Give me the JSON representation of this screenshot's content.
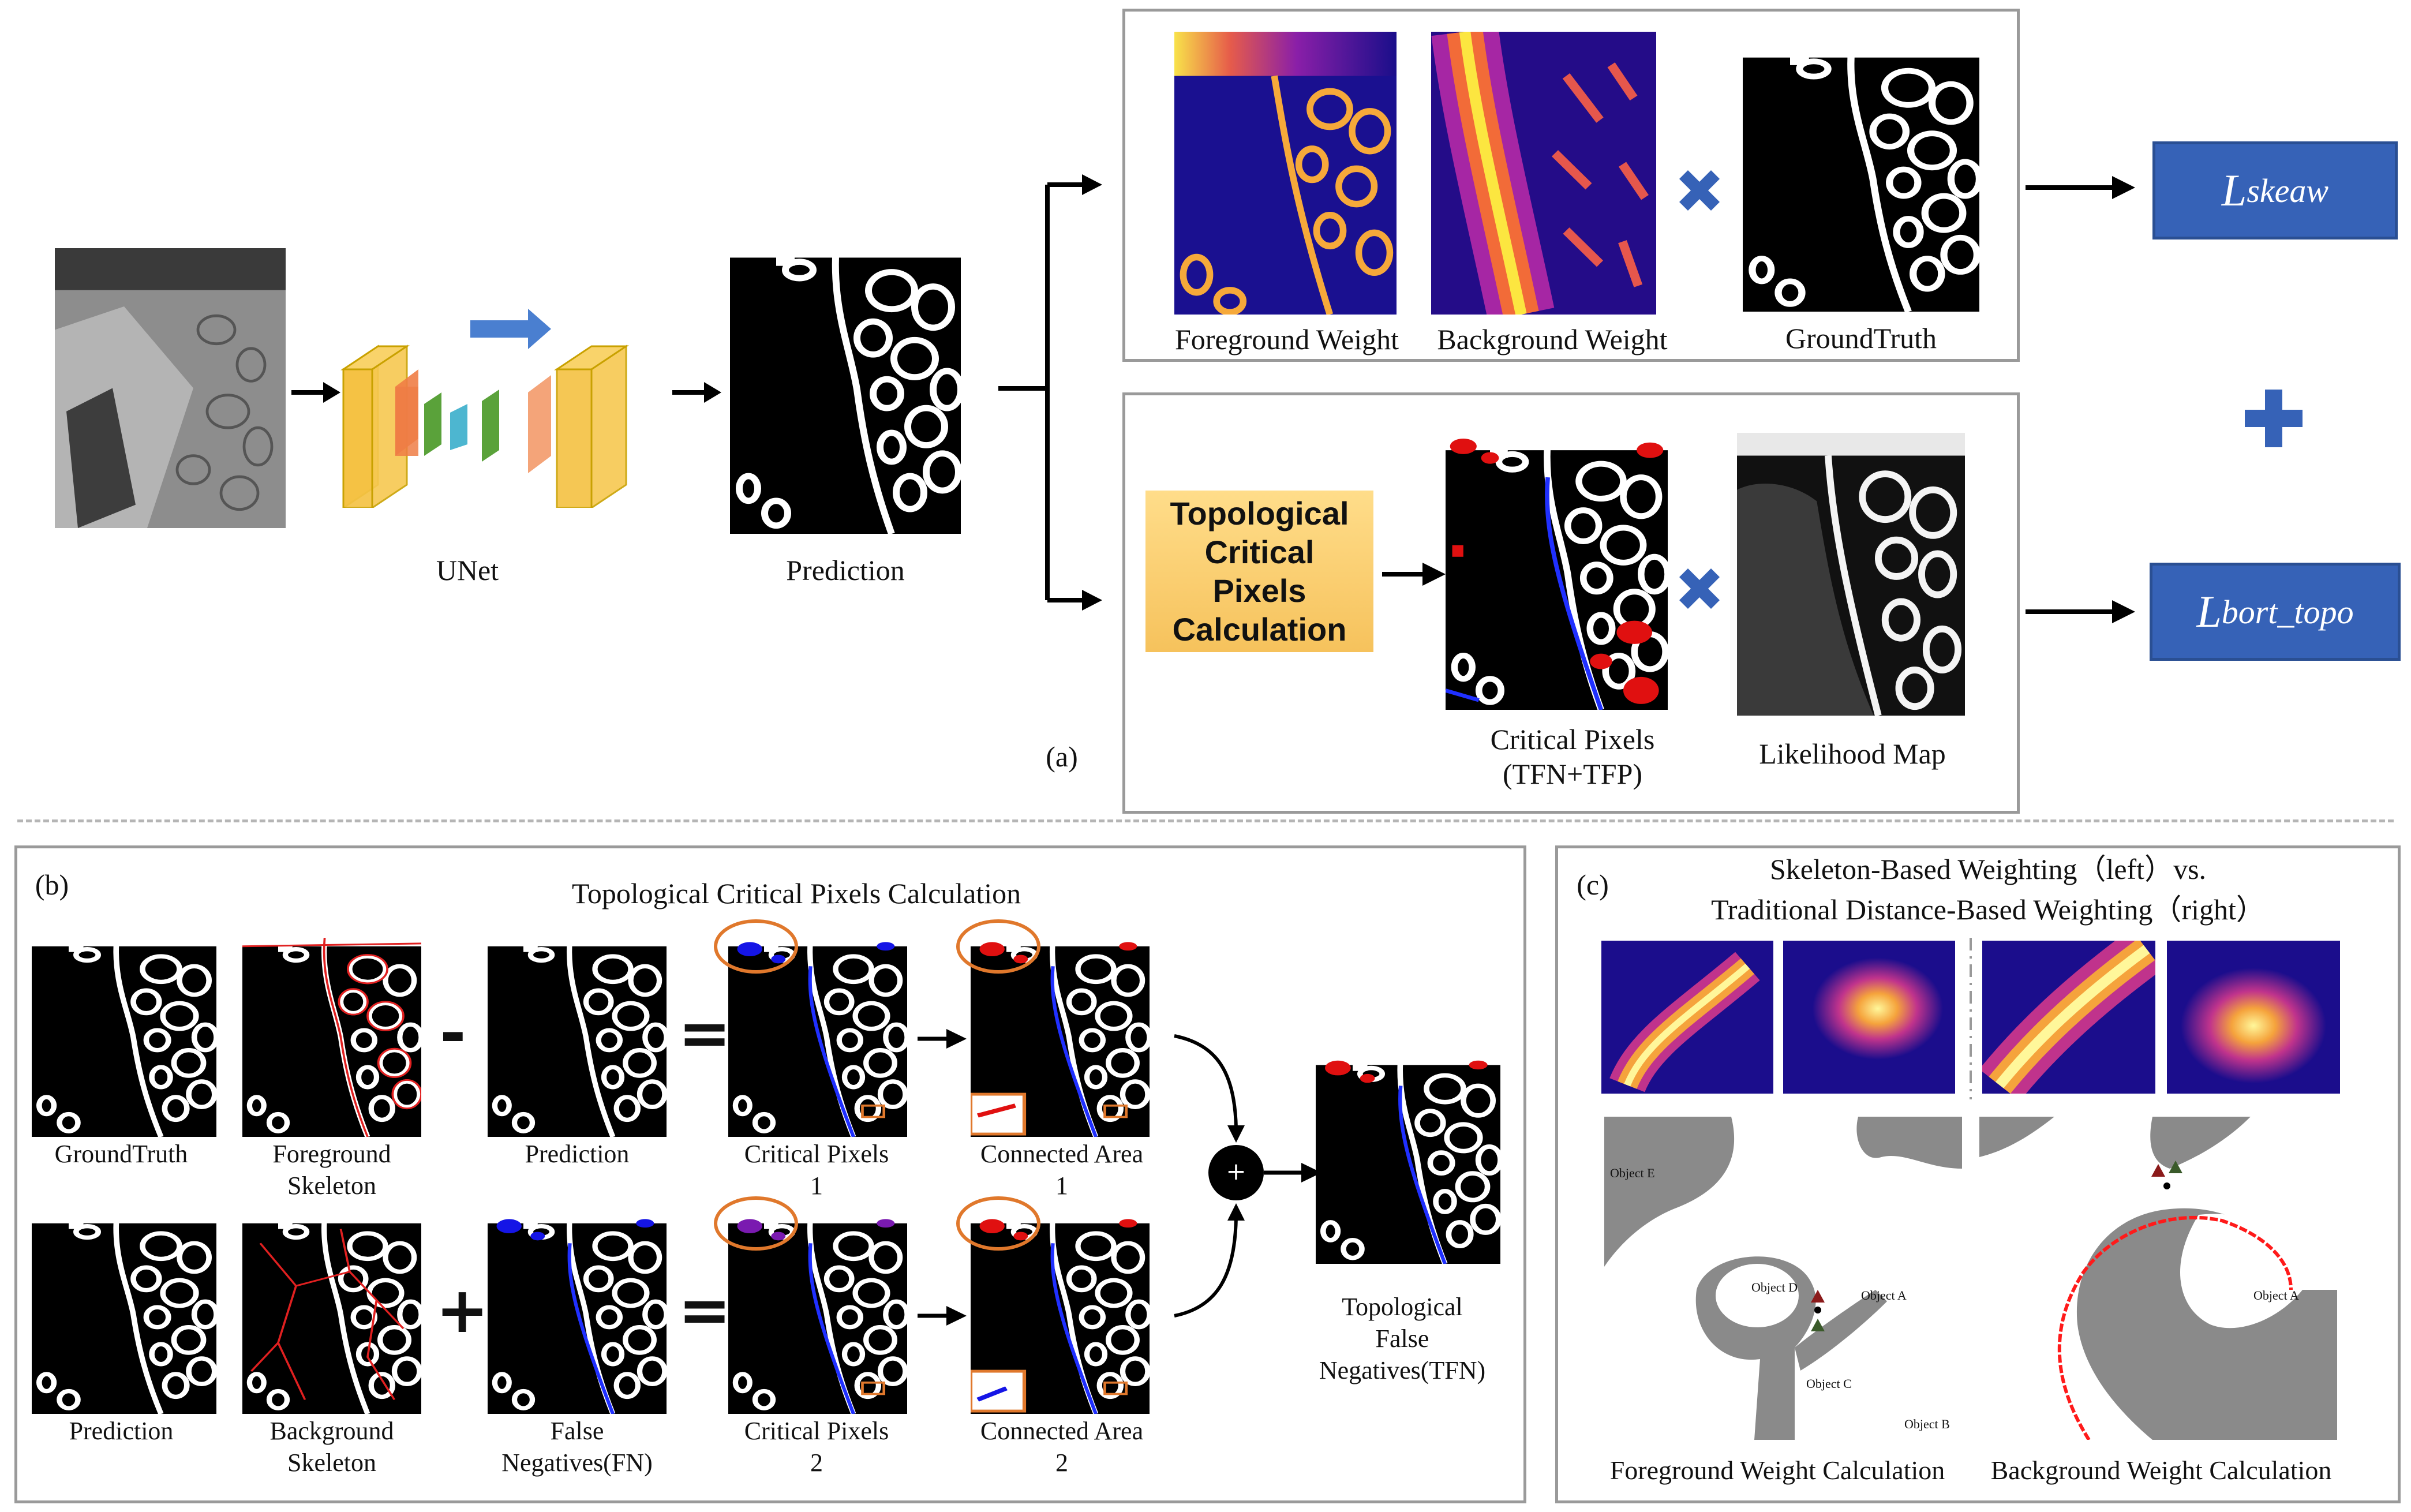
{
  "panel_a": {
    "tag": "(a)",
    "unet_label": "UNet",
    "prediction_label": "Prediction",
    "foreground_weight_label": "Foreground Weight",
    "background_weight_label": "Background Weight",
    "groundtruth_label": "GroundTruth",
    "topo_box_text": "Topological Critical Pixels Calculation",
    "critical_pixels_label_1": "Critical Pixels",
    "critical_pixels_label_2": "(TFN+TFP)",
    "likelihood_label": "Likelihood Map",
    "loss_skeaw_main": "L",
    "loss_skeaw_sub": "skeaw",
    "loss_topo_main": "L",
    "loss_topo_sub": "bort_topo"
  },
  "panel_b": {
    "tag": "(b)",
    "title": "Topological Critical Pixels Calculation",
    "row1": {
      "gt": "GroundTruth",
      "fg_skel_1": "Foreground",
      "fg_skel_2": "Skeleton",
      "pred": "Prediction",
      "crit_1": "Critical Pixels",
      "crit_2": "1",
      "conn_1": "Connected Area",
      "conn_2": "1"
    },
    "row2": {
      "pred": "Prediction",
      "bg_skel_1": "Background",
      "bg_skel_2": "Skeleton",
      "fn_1": "False",
      "fn_2": "Negatives(FN)",
      "crit_1": "Critical Pixels",
      "crit_2": "2",
      "conn_1": "Connected Area",
      "conn_2": "2"
    },
    "tfn_1": "Topological",
    "tfn_2": "False",
    "tfn_3": "Negatives(TFN)",
    "op_minus": "-",
    "op_plus": "+",
    "op_equal": "=",
    "op_circle_plus": "+"
  },
  "panel_c": {
    "tag": "(c)",
    "title_1": "Skeleton-Based Weighting（left）vs.",
    "title_2": "Traditional Distance-Based Weighting（right）",
    "fg_calc_label": "Foreground Weight Calculation",
    "bg_calc_label": "Background Weight Calculation",
    "object_a": "Object A",
    "object_b": "Object B",
    "object_c": "Object C",
    "object_d": "Object D",
    "object_e": "Object E",
    "object_a_right": "Object A"
  },
  "colors": {
    "loss_box": "#3662b7",
    "topo_box": "#f9cd6b",
    "unet_yellow": "#f5c242",
    "unet_orange": "#ef7d45",
    "unet_green": "#5aa23a",
    "skeleton_red": "#e02020",
    "critical_blue": "#1010e0"
  }
}
